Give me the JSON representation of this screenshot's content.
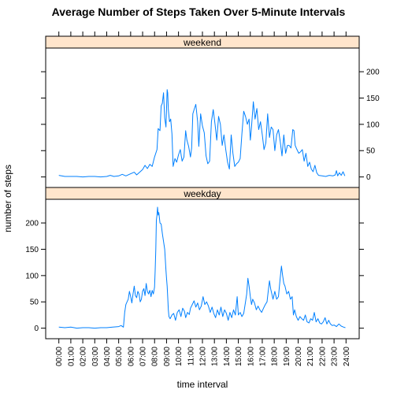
{
  "chart_data": {
    "type": "line",
    "title": "Average Number of Steps Taken Over 5-Minute Intervals",
    "xlabel": "time interval",
    "ylabel": "number of steps",
    "x_tick_labels": [
      "00:00",
      "01:00",
      "02:00",
      "03:00",
      "04:00",
      "05:00",
      "06:00",
      "07:00",
      "08:00",
      "09:00",
      "10:00",
      "11:00",
      "12:00",
      "13:00",
      "14:00",
      "15:00",
      "16:00",
      "17:00",
      "18:00",
      "19:00",
      "20:00",
      "21:00",
      "22:00",
      "23:00",
      "24:00"
    ],
    "xlim_hours": [
      -1.1,
      25.1
    ],
    "ylim": [
      -20,
      245
    ],
    "y_ticks": [
      0,
      50,
      100,
      150,
      200
    ],
    "line_color": "#0080ff",
    "strip_color": "#ffe5cc",
    "panels": [
      {
        "strip": "weekend",
        "y_axis_side": "right",
        "points": [
          [
            0,
            3
          ],
          [
            0.5,
            1
          ],
          [
            1,
            1
          ],
          [
            1.5,
            1
          ],
          [
            2,
            0
          ],
          [
            2.5,
            1
          ],
          [
            3,
            1
          ],
          [
            3.5,
            0
          ],
          [
            4,
            1
          ],
          [
            4.3,
            3
          ],
          [
            4.6,
            1
          ],
          [
            5,
            2
          ],
          [
            5.3,
            5
          ],
          [
            5.6,
            2
          ],
          [
            6,
            6
          ],
          [
            6.3,
            9
          ],
          [
            6.5,
            4
          ],
          [
            6.8,
            10
          ],
          [
            7,
            14
          ],
          [
            7.2,
            22
          ],
          [
            7.4,
            16
          ],
          [
            7.6,
            24
          ],
          [
            7.8,
            20
          ],
          [
            8,
            38
          ],
          [
            8.2,
            52
          ],
          [
            8.3,
            92
          ],
          [
            8.45,
            88
          ],
          [
            8.55,
            135
          ],
          [
            8.65,
            140
          ],
          [
            8.75,
            160
          ],
          [
            8.85,
            112
          ],
          [
            8.95,
            95
          ],
          [
            9.05,
            166
          ],
          [
            9.1,
            160
          ],
          [
            9.15,
            128
          ],
          [
            9.25,
            105
          ],
          [
            9.35,
            110
          ],
          [
            9.45,
            82
          ],
          [
            9.55,
            20
          ],
          [
            9.7,
            35
          ],
          [
            9.85,
            28
          ],
          [
            10,
            42
          ],
          [
            10.15,
            52
          ],
          [
            10.3,
            30
          ],
          [
            10.45,
            38
          ],
          [
            10.6,
            88
          ],
          [
            10.7,
            70
          ],
          [
            10.85,
            58
          ],
          [
            11,
            38
          ],
          [
            11.1,
            55
          ],
          [
            11.2,
            120
          ],
          [
            11.3,
            128
          ],
          [
            11.45,
            138
          ],
          [
            11.6,
            105
          ],
          [
            11.7,
            58
          ],
          [
            11.85,
            120
          ],
          [
            12,
            97
          ],
          [
            12.15,
            84
          ],
          [
            12.3,
            40
          ],
          [
            12.45,
            25
          ],
          [
            12.6,
            30
          ],
          [
            12.75,
            105
          ],
          [
            12.9,
            128
          ],
          [
            13.05,
            100
          ],
          [
            13.2,
            70
          ],
          [
            13.35,
            115
          ],
          [
            13.5,
            100
          ],
          [
            13.65,
            60
          ],
          [
            13.8,
            80
          ],
          [
            13.95,
            52
          ],
          [
            14.1,
            28
          ],
          [
            14.25,
            15
          ],
          [
            14.4,
            80
          ],
          [
            14.55,
            45
          ],
          [
            14.7,
            20
          ],
          [
            14.85,
            25
          ],
          [
            15,
            28
          ],
          [
            15.15,
            35
          ],
          [
            15.3,
            82
          ],
          [
            15.45,
            125
          ],
          [
            15.6,
            115
          ],
          [
            15.75,
            100
          ],
          [
            15.9,
            110
          ],
          [
            16,
            70
          ],
          [
            16.1,
            95
          ],
          [
            16.25,
            143
          ],
          [
            16.4,
            110
          ],
          [
            16.55,
            130
          ],
          [
            16.7,
            90
          ],
          [
            16.85,
            105
          ],
          [
            17,
            80
          ],
          [
            17.15,
            52
          ],
          [
            17.3,
            65
          ],
          [
            17.45,
            120
          ],
          [
            17.6,
            75
          ],
          [
            17.75,
            95
          ],
          [
            17.9,
            90
          ],
          [
            18.05,
            50
          ],
          [
            18.2,
            80
          ],
          [
            18.35,
            90
          ],
          [
            18.5,
            68
          ],
          [
            18.65,
            40
          ],
          [
            18.8,
            80
          ],
          [
            18.95,
            45
          ],
          [
            19.1,
            60
          ],
          [
            19.25,
            60
          ],
          [
            19.4,
            55
          ],
          [
            19.55,
            90
          ],
          [
            19.65,
            88
          ],
          [
            19.75,
            60
          ],
          [
            19.9,
            52
          ],
          [
            20.05,
            45
          ],
          [
            20.2,
            48
          ],
          [
            20.35,
            52
          ],
          [
            20.5,
            30
          ],
          [
            20.65,
            45
          ],
          [
            20.8,
            20
          ],
          [
            20.95,
            28
          ],
          [
            21.1,
            15
          ],
          [
            21.25,
            10
          ],
          [
            21.4,
            22
          ],
          [
            21.55,
            8
          ],
          [
            21.7,
            3
          ],
          [
            22,
            2
          ],
          [
            22.3,
            1
          ],
          [
            22.6,
            3
          ],
          [
            22.9,
            2
          ],
          [
            23.1,
            4
          ],
          [
            23.2,
            12
          ],
          [
            23.3,
            2
          ],
          [
            23.45,
            8
          ],
          [
            23.6,
            3
          ],
          [
            23.75,
            10
          ],
          [
            23.9,
            2
          ]
        ]
      },
      {
        "strip": "weekday",
        "y_axis_side": "left",
        "points": [
          [
            0,
            2
          ],
          [
            0.5,
            1
          ],
          [
            1,
            2
          ],
          [
            1.5,
            0
          ],
          [
            2,
            1
          ],
          [
            2.5,
            1
          ],
          [
            3,
            0
          ],
          [
            3.5,
            1
          ],
          [
            4,
            1
          ],
          [
            4.5,
            2
          ],
          [
            5,
            3
          ],
          [
            5.2,
            5
          ],
          [
            5.4,
            2
          ],
          [
            5.5,
            30
          ],
          [
            5.6,
            45
          ],
          [
            5.7,
            50
          ],
          [
            5.8,
            55
          ],
          [
            5.9,
            70
          ],
          [
            6,
            60
          ],
          [
            6.1,
            48
          ],
          [
            6.2,
            65
          ],
          [
            6.3,
            80
          ],
          [
            6.4,
            62
          ],
          [
            6.5,
            58
          ],
          [
            6.6,
            70
          ],
          [
            6.7,
            65
          ],
          [
            6.8,
            50
          ],
          [
            6.9,
            55
          ],
          [
            7,
            70
          ],
          [
            7.1,
            75
          ],
          [
            7.2,
            62
          ],
          [
            7.3,
            85
          ],
          [
            7.4,
            70
          ],
          [
            7.5,
            65
          ],
          [
            7.6,
            72
          ],
          [
            7.7,
            60
          ],
          [
            7.8,
            72
          ],
          [
            7.9,
            65
          ],
          [
            8,
            78
          ],
          [
            8.05,
            110
          ],
          [
            8.1,
            150
          ],
          [
            8.15,
            205
          ],
          [
            8.2,
            215
          ],
          [
            8.25,
            230
          ],
          [
            8.3,
            215
          ],
          [
            8.35,
            220
          ],
          [
            8.45,
            200
          ],
          [
            8.55,
            198
          ],
          [
            8.65,
            180
          ],
          [
            8.75,
            165
          ],
          [
            8.85,
            150
          ],
          [
            8.95,
            110
          ],
          [
            9,
            95
          ],
          [
            9.05,
            80
          ],
          [
            9.1,
            60
          ],
          [
            9.15,
            35
          ],
          [
            9.2,
            22
          ],
          [
            9.3,
            18
          ],
          [
            9.45,
            25
          ],
          [
            9.6,
            28
          ],
          [
            9.75,
            15
          ],
          [
            9.9,
            30
          ],
          [
            10.05,
            35
          ],
          [
            10.2,
            22
          ],
          [
            10.35,
            38
          ],
          [
            10.5,
            32
          ],
          [
            10.6,
            20
          ],
          [
            10.75,
            30
          ],
          [
            10.9,
            26
          ],
          [
            11,
            38
          ],
          [
            11.15,
            45
          ],
          [
            11.3,
            52
          ],
          [
            11.45,
            40
          ],
          [
            11.6,
            48
          ],
          [
            11.75,
            35
          ],
          [
            11.9,
            42
          ],
          [
            12.05,
            60
          ],
          [
            12.2,
            45
          ],
          [
            12.35,
            50
          ],
          [
            12.5,
            42
          ],
          [
            12.65,
            30
          ],
          [
            12.8,
            40
          ],
          [
            12.95,
            28
          ],
          [
            13.1,
            20
          ],
          [
            13.25,
            35
          ],
          [
            13.4,
            25
          ],
          [
            13.55,
            40
          ],
          [
            13.7,
            22
          ],
          [
            13.85,
            35
          ],
          [
            14,
            28
          ],
          [
            14.15,
            15
          ],
          [
            14.3,
            30
          ],
          [
            14.45,
            20
          ],
          [
            14.6,
            35
          ],
          [
            14.75,
            25
          ],
          [
            14.9,
            60
          ],
          [
            15,
            25
          ],
          [
            15.15,
            30
          ],
          [
            15.3,
            22
          ],
          [
            15.45,
            28
          ],
          [
            15.6,
            50
          ],
          [
            15.7,
            65
          ],
          [
            15.8,
            95
          ],
          [
            15.9,
            80
          ],
          [
            16,
            60
          ],
          [
            16.1,
            45
          ],
          [
            16.2,
            55
          ],
          [
            16.35,
            48
          ],
          [
            16.5,
            35
          ],
          [
            16.65,
            42
          ],
          [
            16.8,
            35
          ],
          [
            16.95,
            30
          ],
          [
            17.1,
            38
          ],
          [
            17.25,
            45
          ],
          [
            17.4,
            50
          ],
          [
            17.5,
            70
          ],
          [
            17.6,
            90
          ],
          [
            17.7,
            75
          ],
          [
            17.8,
            65
          ],
          [
            17.9,
            55
          ],
          [
            18.05,
            70
          ],
          [
            18.2,
            55
          ],
          [
            18.35,
            60
          ],
          [
            18.5,
            95
          ],
          [
            18.6,
            118
          ],
          [
            18.7,
            100
          ],
          [
            18.8,
            85
          ],
          [
            18.9,
            80
          ],
          [
            19.05,
            65
          ],
          [
            19.2,
            70
          ],
          [
            19.35,
            55
          ],
          [
            19.5,
            60
          ],
          [
            19.6,
            25
          ],
          [
            19.7,
            35
          ],
          [
            19.85,
            22
          ],
          [
            20,
            15
          ],
          [
            20.15,
            22
          ],
          [
            20.3,
            18
          ],
          [
            20.45,
            15
          ],
          [
            20.6,
            25
          ],
          [
            20.75,
            12
          ],
          [
            20.9,
            10
          ],
          [
            21.05,
            18
          ],
          [
            21.2,
            15
          ],
          [
            21.35,
            30
          ],
          [
            21.5,
            12
          ],
          [
            21.65,
            18
          ],
          [
            21.8,
            10
          ],
          [
            21.95,
            8
          ],
          [
            22.1,
            12
          ],
          [
            22.25,
            20
          ],
          [
            22.4,
            8
          ],
          [
            22.55,
            15
          ],
          [
            22.7,
            8
          ],
          [
            22.85,
            5
          ],
          [
            23,
            6
          ],
          [
            23.2,
            3
          ],
          [
            23.4,
            8
          ],
          [
            23.6,
            4
          ],
          [
            23.8,
            2
          ],
          [
            23.95,
            1
          ]
        ]
      }
    ]
  }
}
